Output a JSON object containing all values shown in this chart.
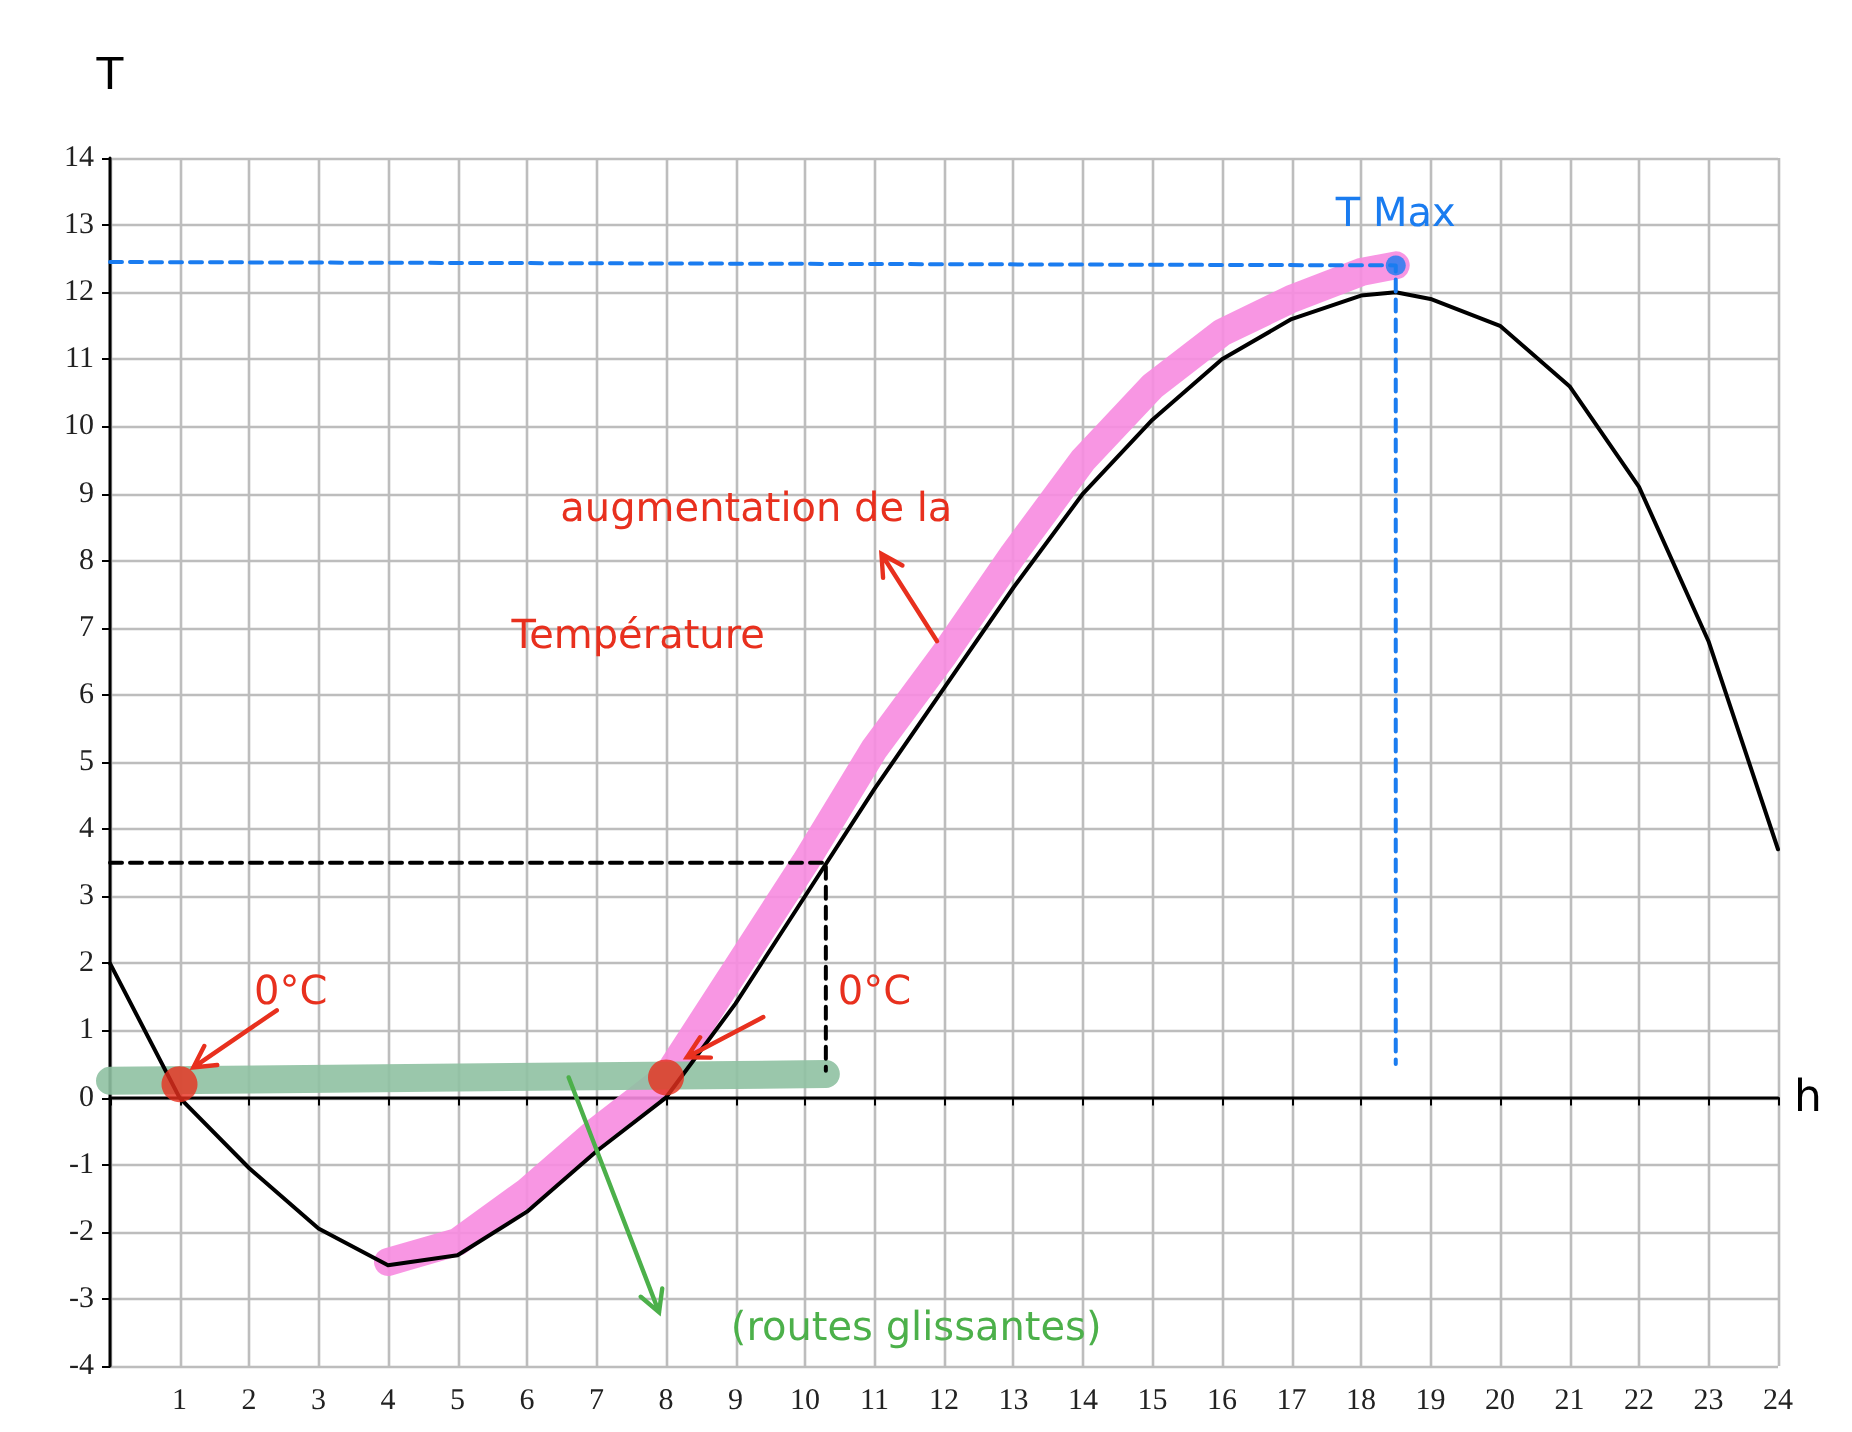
{
  "chart_data": {
    "type": "line",
    "xlabel": "h",
    "ylabel": "T",
    "xlim": [
      0,
      24
    ],
    "ylim": [
      -4,
      14
    ],
    "xticks": [
      {
        "value": 0,
        "label": null
      },
      1,
      2,
      3,
      4,
      5,
      6,
      7,
      8,
      9,
      10,
      11,
      12,
      13,
      14,
      15,
      16,
      17,
      18,
      19,
      20,
      21,
      22,
      23,
      24
    ],
    "yticks": [
      -4,
      -3,
      -2,
      -1,
      0,
      1,
      2,
      3,
      4,
      5,
      6,
      7,
      8,
      9,
      10,
      11,
      12,
      13,
      14
    ],
    "grid": true,
    "marker": "none",
    "line_style": "solid",
    "series": [
      {
        "color": "#f78be0",
        "x": [
          4,
          5,
          6,
          7,
          8,
          9,
          10,
          11,
          12,
          13,
          14,
          15,
          16,
          17,
          18,
          18.5
        ],
        "values": [
          -2.45,
          -2.15,
          -1.4,
          -0.5,
          0.3,
          1.9,
          3.5,
          5.2,
          6.6,
          8.1,
          9.5,
          10.6,
          11.4,
          11.9,
          12.3,
          12.4
        ]
      },
      {
        "color": "#8fc1a2",
        "x": [
          0,
          10.3
        ],
        "values": [
          0.25,
          0.35
        ]
      },
      {
        "color": "#000000",
        "x": [
          0,
          1,
          2,
          3,
          4,
          5,
          6,
          7,
          8,
          9,
          10,
          11,
          12,
          13,
          14,
          15,
          16,
          17,
          18,
          18.5,
          19,
          20,
          21,
          22,
          23,
          24
        ],
        "values": [
          2,
          0,
          -1.05,
          -1.95,
          -2.5,
          -2.35,
          -1.7,
          -0.8,
          0,
          1.4,
          3,
          4.6,
          6.1,
          7.6,
          9,
          10.1,
          11,
          11.6,
          11.95,
          12,
          11.9,
          11.5,
          10.6,
          9.1,
          6.8,
          3.7
        ]
      },
      {
        "color": "#1a7cf0",
        "line_style": "dashed",
        "x": [
          0,
          18.5,
          18.5
        ],
        "values": [
          12.45,
          12.4,
          0.5
        ]
      },
      {
        "color": "#000000",
        "line_style": "dashed",
        "x": [
          0,
          10.3,
          10.3
        ],
        "values": [
          3.5,
          3.5,
          0.4
        ]
      },
      {
        "type": "scatter",
        "color": "#e8301e",
        "marker": "circle",
        "x": [
          1,
          8
        ],
        "values": [
          0.2,
          0.3
        ]
      },
      {
        "type": "scatter",
        "color": "#1a7cf0",
        "marker": "circle",
        "x": [
          18.5
        ],
        "values": [
          12.4
        ]
      }
    ],
    "annotations": [
      {
        "text": "0°C",
        "x": 1,
        "y": 0.2
      },
      "0°C",
      {
        "text": "augmentation de la",
        "x": 12,
        "y": 6.6
      },
      "Température",
      "T Max",
      "(routes glissantes)"
    ]
  }
}
